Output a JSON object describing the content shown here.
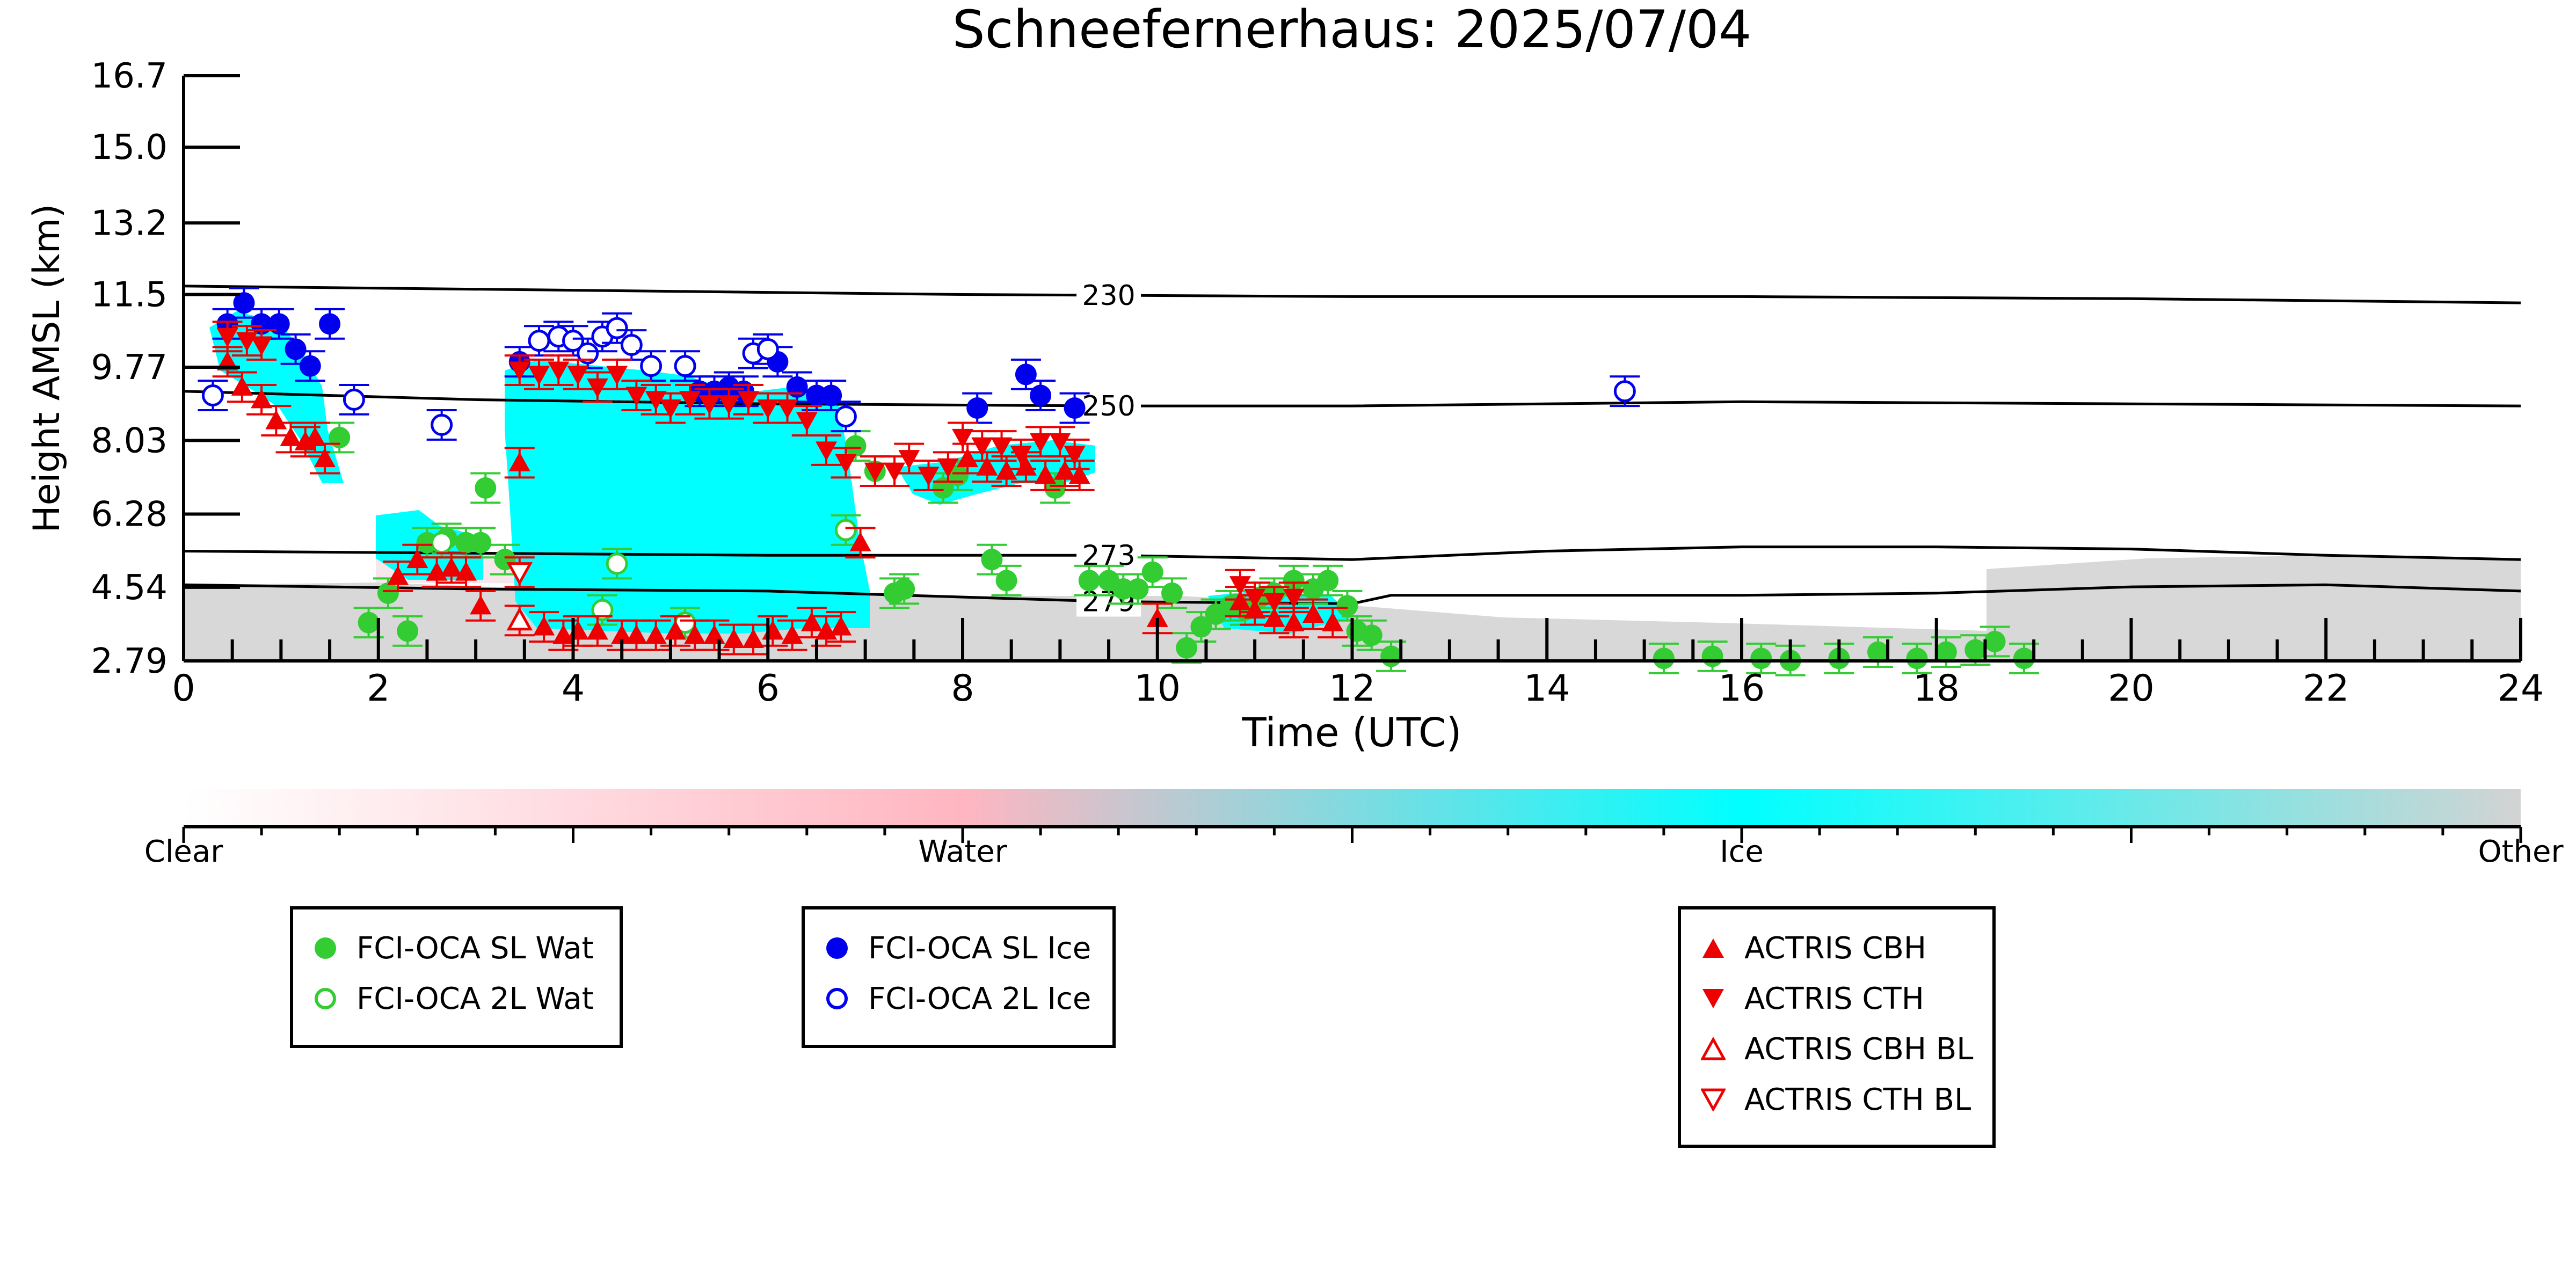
{
  "chart_data": {
    "type": "scatter",
    "title": "Schneefernerhaus: 2025/07/04",
    "xlabel": "Time (UTC)",
    "ylabel": "Height AMSL (km)",
    "xlim": [
      0,
      24
    ],
    "ylim": [
      2.79,
      16.7
    ],
    "x_ticks": [
      "0",
      "2",
      "4",
      "6",
      "8",
      "10",
      "12",
      "14",
      "16",
      "18",
      "20",
      "22",
      "24"
    ],
    "y_ticks": [
      "2.79",
      "4.54",
      "6.28",
      "8.03",
      "9.77",
      "11.5",
      "13.2",
      "15.0",
      "16.7"
    ],
    "colorbar": {
      "labels": [
        "Clear",
        "Water",
        "Ice",
        "Other"
      ],
      "colors": [
        "#ffffff",
        "#ffb6c1",
        "#00ffff",
        "#d3d3d3"
      ]
    },
    "isotherms": [
      {
        "label": "230",
        "x": [
          0,
          4,
          8,
          12,
          16,
          20,
          24
        ],
        "y": [
          11.7,
          11.6,
          11.5,
          11.45,
          11.45,
          11.4,
          11.3
        ]
      },
      {
        "label": "250",
        "x": [
          0,
          3,
          6,
          9.5,
          12,
          16,
          20,
          24
        ],
        "y": [
          9.2,
          9.0,
          8.9,
          8.85,
          8.85,
          8.95,
          8.9,
          8.85
        ]
      },
      {
        "label": "273",
        "x": [
          0,
          3,
          6,
          9.5,
          12,
          14,
          16,
          18,
          20,
          22,
          24
        ],
        "y": [
          5.4,
          5.35,
          5.3,
          5.3,
          5.2,
          5.4,
          5.5,
          5.5,
          5.45,
          5.3,
          5.2
        ]
      },
      {
        "label": "279",
        "x": [
          0,
          3,
          6,
          9.5,
          12,
          12.4,
          16,
          18,
          20,
          22,
          24
        ],
        "y": [
          4.6,
          4.5,
          4.45,
          4.2,
          4.15,
          4.35,
          4.35,
          4.4,
          4.55,
          4.6,
          4.45
        ]
      }
    ],
    "series": [
      {
        "name": "FCI-OCA SL Wat",
        "marker": "filled-circle",
        "color": "#33cc33",
        "points": [
          [
            1.6,
            8.1
          ],
          [
            1.9,
            3.7
          ],
          [
            2.1,
            4.4
          ],
          [
            2.3,
            3.5
          ],
          [
            2.5,
            5.6
          ],
          [
            2.7,
            5.7
          ],
          [
            2.9,
            5.6
          ],
          [
            3.05,
            5.6
          ],
          [
            3.1,
            6.9
          ],
          [
            3.3,
            5.2
          ],
          [
            6.9,
            7.9
          ],
          [
            7.1,
            7.3
          ],
          [
            7.3,
            4.4
          ],
          [
            7.4,
            4.5
          ],
          [
            7.8,
            6.9
          ],
          [
            7.95,
            7.2
          ],
          [
            8.3,
            5.2
          ],
          [
            8.45,
            4.7
          ],
          [
            8.95,
            6.9
          ],
          [
            9.3,
            4.7
          ],
          [
            9.5,
            4.7
          ],
          [
            9.65,
            4.5
          ],
          [
            9.8,
            4.5
          ],
          [
            9.95,
            4.9
          ],
          [
            10.15,
            4.4
          ],
          [
            10.3,
            3.1
          ],
          [
            10.45,
            3.6
          ],
          [
            10.6,
            3.9
          ],
          [
            10.75,
            4.1
          ],
          [
            10.9,
            4.0
          ],
          [
            11.05,
            4.3
          ],
          [
            11.2,
            4.4
          ],
          [
            11.4,
            4.7
          ],
          [
            11.6,
            4.5
          ],
          [
            11.75,
            4.7
          ],
          [
            11.95,
            4.1
          ],
          [
            12.05,
            3.5
          ],
          [
            12.2,
            3.4
          ],
          [
            12.4,
            2.9
          ],
          [
            15.2,
            2.85
          ],
          [
            15.7,
            2.9
          ],
          [
            16.2,
            2.85
          ],
          [
            16.5,
            2.8
          ],
          [
            17.0,
            2.85
          ],
          [
            17.4,
            3.0
          ],
          [
            17.8,
            2.85
          ],
          [
            18.1,
            3.0
          ],
          [
            18.4,
            3.05
          ],
          [
            18.6,
            3.25
          ],
          [
            18.9,
            2.85
          ]
        ]
      },
      {
        "name": "FCI-OCA 2L Wat",
        "marker": "open-circle",
        "color": "#33cc33",
        "points": [
          [
            2.65,
            5.6
          ],
          [
            4.3,
            4.0
          ],
          [
            4.45,
            5.1
          ],
          [
            5.15,
            3.7
          ],
          [
            6.8,
            5.9
          ]
        ]
      },
      {
        "name": "FCI-OCA SL Ice",
        "marker": "filled-circle",
        "color": "#0000ee",
        "points": [
          [
            0.45,
            10.8
          ],
          [
            0.62,
            11.3
          ],
          [
            0.8,
            10.8
          ],
          [
            0.98,
            10.8
          ],
          [
            1.15,
            10.2
          ],
          [
            1.3,
            9.8
          ],
          [
            1.5,
            10.8
          ],
          [
            3.45,
            9.9
          ],
          [
            5.3,
            9.2
          ],
          [
            5.45,
            9.2
          ],
          [
            5.6,
            9.3
          ],
          [
            5.75,
            9.2
          ],
          [
            6.1,
            9.9
          ],
          [
            6.3,
            9.3
          ],
          [
            6.5,
            9.1
          ],
          [
            6.65,
            9.1
          ],
          [
            8.15,
            8.8
          ],
          [
            8.65,
            9.6
          ],
          [
            8.8,
            9.1
          ],
          [
            9.15,
            8.8
          ]
        ]
      },
      {
        "name": "FCI-OCA 2L Ice",
        "marker": "open-circle",
        "color": "#0000ee",
        "points": [
          [
            0.3,
            9.1
          ],
          [
            1.75,
            9.0
          ],
          [
            2.65,
            8.4
          ],
          [
            3.65,
            10.4
          ],
          [
            3.85,
            10.5
          ],
          [
            4.0,
            10.4
          ],
          [
            4.15,
            10.1
          ],
          [
            4.3,
            10.5
          ],
          [
            4.45,
            10.7
          ],
          [
            4.6,
            10.3
          ],
          [
            4.8,
            9.8
          ],
          [
            5.15,
            9.8
          ],
          [
            5.85,
            10.1
          ],
          [
            6.0,
            10.2
          ],
          [
            6.8,
            8.6
          ],
          [
            14.8,
            9.2
          ]
        ]
      },
      {
        "name": "ACTRIS CBH",
        "marker": "triangle-up",
        "color": "#ee0000",
        "points": [
          [
            0.45,
            9.9
          ],
          [
            0.6,
            9.3
          ],
          [
            0.8,
            9.0
          ],
          [
            0.95,
            8.5
          ],
          [
            1.1,
            8.1
          ],
          [
            1.25,
            8.0
          ],
          [
            1.35,
            8.1
          ],
          [
            1.45,
            7.6
          ],
          [
            2.2,
            4.8
          ],
          [
            2.4,
            5.2
          ],
          [
            2.6,
            4.9
          ],
          [
            2.75,
            5.0
          ],
          [
            2.9,
            4.9
          ],
          [
            3.05,
            4.1
          ],
          [
            3.45,
            7.5
          ],
          [
            3.7,
            3.6
          ],
          [
            3.9,
            3.4
          ],
          [
            4.05,
            3.5
          ],
          [
            4.25,
            3.5
          ],
          [
            4.5,
            3.4
          ],
          [
            4.65,
            3.4
          ],
          [
            4.85,
            3.4
          ],
          [
            5.05,
            3.5
          ],
          [
            5.25,
            3.4
          ],
          [
            5.45,
            3.4
          ],
          [
            5.65,
            3.3
          ],
          [
            5.85,
            3.3
          ],
          [
            6.05,
            3.5
          ],
          [
            6.25,
            3.4
          ],
          [
            6.45,
            3.7
          ],
          [
            6.6,
            3.5
          ],
          [
            6.75,
            3.6
          ],
          [
            6.95,
            5.6
          ],
          [
            8.05,
            7.6
          ],
          [
            8.25,
            7.4
          ],
          [
            8.45,
            7.3
          ],
          [
            8.65,
            7.4
          ],
          [
            8.85,
            7.2
          ],
          [
            9.05,
            7.3
          ],
          [
            9.2,
            7.2
          ],
          [
            10.0,
            3.8
          ],
          [
            10.85,
            4.2
          ],
          [
            11.0,
            4.0
          ],
          [
            11.2,
            3.8
          ],
          [
            11.4,
            3.7
          ],
          [
            11.6,
            3.9
          ],
          [
            11.8,
            3.7
          ]
        ]
      },
      {
        "name": "ACTRIS CTH",
        "marker": "triangle-down",
        "color": "#ee0000",
        "points": [
          [
            0.45,
            10.5
          ],
          [
            0.65,
            10.4
          ],
          [
            0.8,
            10.3
          ],
          [
            3.45,
            9.7
          ],
          [
            3.65,
            9.6
          ],
          [
            3.85,
            9.7
          ],
          [
            4.05,
            9.6
          ],
          [
            4.25,
            9.3
          ],
          [
            4.45,
            9.6
          ],
          [
            4.65,
            9.1
          ],
          [
            4.85,
            9.0
          ],
          [
            5.0,
            8.8
          ],
          [
            5.2,
            9.0
          ],
          [
            5.4,
            8.9
          ],
          [
            5.6,
            8.9
          ],
          [
            5.8,
            9.0
          ],
          [
            6.0,
            8.8
          ],
          [
            6.2,
            8.8
          ],
          [
            6.4,
            8.5
          ],
          [
            6.6,
            7.8
          ],
          [
            6.8,
            7.5
          ],
          [
            7.1,
            7.3
          ],
          [
            7.3,
            7.3
          ],
          [
            7.45,
            7.6
          ],
          [
            7.65,
            7.2
          ],
          [
            7.85,
            7.4
          ],
          [
            8.0,
            8.1
          ],
          [
            8.2,
            7.9
          ],
          [
            8.4,
            7.9
          ],
          [
            8.6,
            7.7
          ],
          [
            8.8,
            8.0
          ],
          [
            9.0,
            8.0
          ],
          [
            9.15,
            7.7
          ],
          [
            10.85,
            4.6
          ],
          [
            11.0,
            4.3
          ],
          [
            11.2,
            4.2
          ],
          [
            11.4,
            4.3
          ]
        ]
      },
      {
        "name": "ACTRIS CBH BL",
        "marker": "open-triangle-up",
        "color": "#ee0000",
        "points": [
          [
            3.45,
            3.75
          ]
        ]
      },
      {
        "name": "ACTRIS CTH BL",
        "marker": "open-triangle-down",
        "color": "#ee0000",
        "points": [
          [
            3.45,
            4.9
          ]
        ]
      }
    ],
    "legend_groups": [
      {
        "entries": [
          {
            "label": "FCI-OCA SL Wat",
            "marker": "filled-circle",
            "color": "#33cc33"
          },
          {
            "label": "FCI-OCA 2L Wat",
            "marker": "open-circle",
            "color": "#33cc33"
          }
        ]
      },
      {
        "entries": [
          {
            "label": "FCI-OCA SL Ice",
            "marker": "filled-circle",
            "color": "#0000ee"
          },
          {
            "label": "FCI-OCA 2L Ice",
            "marker": "open-circle",
            "color": "#0000ee"
          }
        ]
      },
      {
        "entries": [
          {
            "label": "ACTRIS CBH",
            "marker": "triangle-up",
            "color": "#ee0000"
          },
          {
            "label": "ACTRIS CTH",
            "marker": "triangle-down",
            "color": "#ee0000"
          },
          {
            "label": "ACTRIS CBH BL",
            "marker": "open-triangle-up",
            "color": "#ee0000"
          },
          {
            "label": "ACTRIS CTH BL",
            "marker": "open-triangle-down",
            "color": "#ee0000"
          }
        ]
      }
    ]
  }
}
